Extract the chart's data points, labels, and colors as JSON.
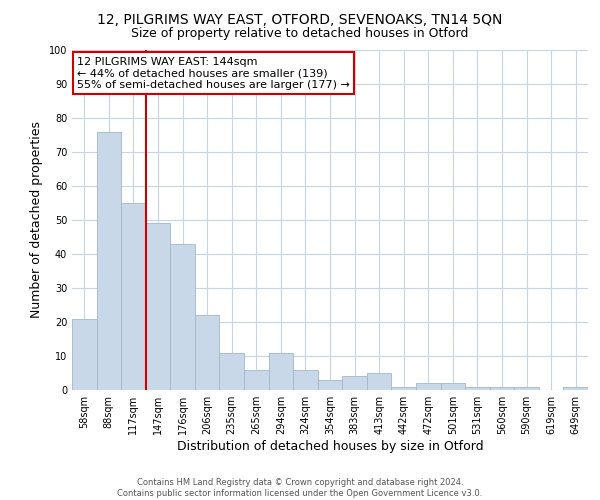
{
  "title": "12, PILGRIMS WAY EAST, OTFORD, SEVENOAKS, TN14 5QN",
  "subtitle": "Size of property relative to detached houses in Otford",
  "xlabel": "Distribution of detached houses by size in Otford",
  "ylabel": "Number of detached properties",
  "bar_labels": [
    "58sqm",
    "88sqm",
    "117sqm",
    "147sqm",
    "176sqm",
    "206sqm",
    "235sqm",
    "265sqm",
    "294sqm",
    "324sqm",
    "354sqm",
    "383sqm",
    "413sqm",
    "442sqm",
    "472sqm",
    "501sqm",
    "531sqm",
    "560sqm",
    "590sqm",
    "619sqm",
    "649sqm"
  ],
  "bar_values": [
    21,
    76,
    55,
    49,
    43,
    22,
    11,
    6,
    11,
    6,
    3,
    4,
    5,
    1,
    2,
    2,
    1,
    1,
    1,
    0,
    1
  ],
  "bar_color": "#c8d8e8",
  "bar_edge_color": "#a0b8cc",
  "vline_color": "#cc0000",
  "vline_position": 2.5,
  "ylim": [
    0,
    100
  ],
  "yticks": [
    0,
    10,
    20,
    30,
    40,
    50,
    60,
    70,
    80,
    90,
    100
  ],
  "annotation_title": "12 PILGRIMS WAY EAST: 144sqm",
  "annotation_line1": "← 44% of detached houses are smaller (139)",
  "annotation_line2": "55% of semi-detached houses are larger (177) →",
  "annotation_box_color": "#ffffff",
  "annotation_box_edge": "#cc0000",
  "footer1": "Contains HM Land Registry data © Crown copyright and database right 2024.",
  "footer2": "Contains public sector information licensed under the Open Government Licence v3.0.",
  "background_color": "#ffffff",
  "grid_color": "#c8d4e0",
  "title_fontsize": 10,
  "subtitle_fontsize": 9,
  "xlabel_fontsize": 9,
  "ylabel_fontsize": 9,
  "tick_fontsize": 7,
  "annotation_fontsize": 8,
  "footer_fontsize": 6
}
